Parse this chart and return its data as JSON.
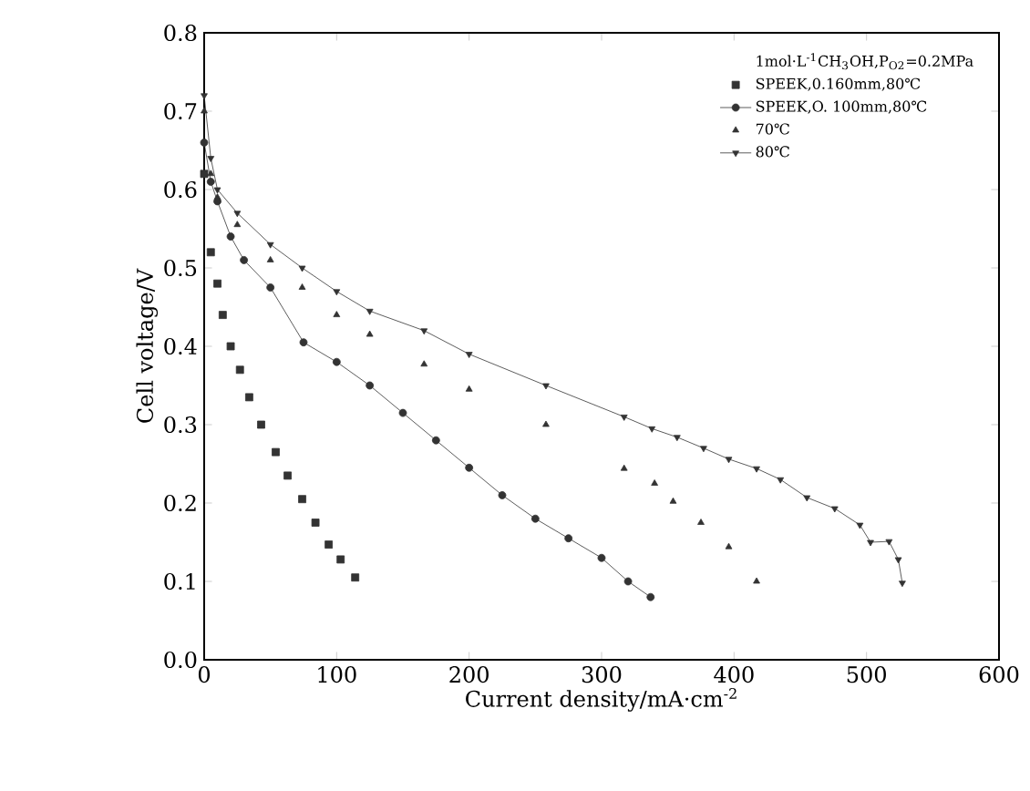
{
  "chart_data": {
    "type": "line",
    "xlabel": "Current density/mA·cm$^{-2}$",
    "ylabel": "Cell voltage/V",
    "legend_title": "1mol·L$^{-1}$CH$_{3}$OH,P$_{O2}$=0.2MPa",
    "legend": "top right",
    "grid": false,
    "xlim": [
      0,
      600
    ],
    "xticks": [
      0,
      100,
      200,
      300,
      400,
      500,
      600
    ],
    "ylim": [
      0,
      0.8
    ],
    "yticks": [
      {
        "value": 0,
        "label": "0.0"
      },
      {
        "value": 0.1,
        "label": "0.1"
      },
      {
        "value": 0.2,
        "label": "0.2"
      },
      {
        "value": 0.3,
        "label": "0.3"
      },
      {
        "value": 0.4,
        "label": "0.4"
      },
      {
        "value": 0.5,
        "label": "0.5"
      },
      {
        "value": 0.6,
        "label": "0.6"
      },
      {
        "value": 0.7,
        "label": "0.7"
      },
      {
        "value": 0.8,
        "label": "0.8"
      }
    ],
    "series": [
      {
        "name": "SPEEK,0.160mm,80℃",
        "type": "scatter",
        "marker": "square",
        "color": "#333333",
        "x": [
          0,
          5,
          10,
          14,
          20,
          27,
          34,
          43,
          54,
          63,
          74,
          84,
          94,
          103,
          114
        ],
        "values": [
          0.62,
          0.52,
          0.48,
          0.44,
          0.4,
          0.37,
          0.335,
          0.3,
          0.265,
          0.235,
          0.205,
          0.175,
          0.147,
          0.128,
          0.105
        ]
      },
      {
        "name": "SPEEK,O. 100mm,80℃",
        "marker": "circle",
        "color": "#333333",
        "x": [
          0,
          5,
          10,
          20,
          30,
          50,
          75,
          100,
          125,
          150,
          175,
          200,
          225,
          250,
          275,
          300,
          320,
          337
        ],
        "values": [
          0.66,
          0.61,
          0.585,
          0.54,
          0.51,
          0.475,
          0.405,
          0.38,
          0.35,
          0.315,
          0.28,
          0.245,
          0.21,
          0.18,
          0.155,
          0.13,
          0.1,
          0.08
        ]
      },
      {
        "name": "70℃",
        "type": "scatter",
        "marker": "triangle",
        "color": "#333333",
        "x": [
          0,
          5,
          10,
          25,
          50,
          74,
          100,
          125,
          166,
          200,
          258,
          317,
          340,
          354,
          375,
          396,
          417
        ],
        "values": [
          0.7,
          0.62,
          0.59,
          0.555,
          0.51,
          0.475,
          0.44,
          0.415,
          0.377,
          0.345,
          0.3,
          0.244,
          0.225,
          0.202,
          0.175,
          0.144,
          0.1
        ]
      },
      {
        "name": "80℃",
        "marker": "triangle down",
        "color": "#333333",
        "x": [
          0,
          5,
          10,
          25,
          50,
          74,
          100,
          125,
          166,
          200,
          258,
          317,
          338,
          357,
          377,
          396,
          417,
          435,
          455,
          476,
          495,
          503,
          517,
          524,
          527
        ],
        "values": [
          0.72,
          0.64,
          0.6,
          0.57,
          0.53,
          0.5,
          0.47,
          0.445,
          0.42,
          0.39,
          0.35,
          0.31,
          0.295,
          0.284,
          0.27,
          0.256,
          0.244,
          0.23,
          0.207,
          0.193,
          0.172,
          0.15,
          0.151,
          0.128,
          0.098
        ]
      }
    ]
  }
}
